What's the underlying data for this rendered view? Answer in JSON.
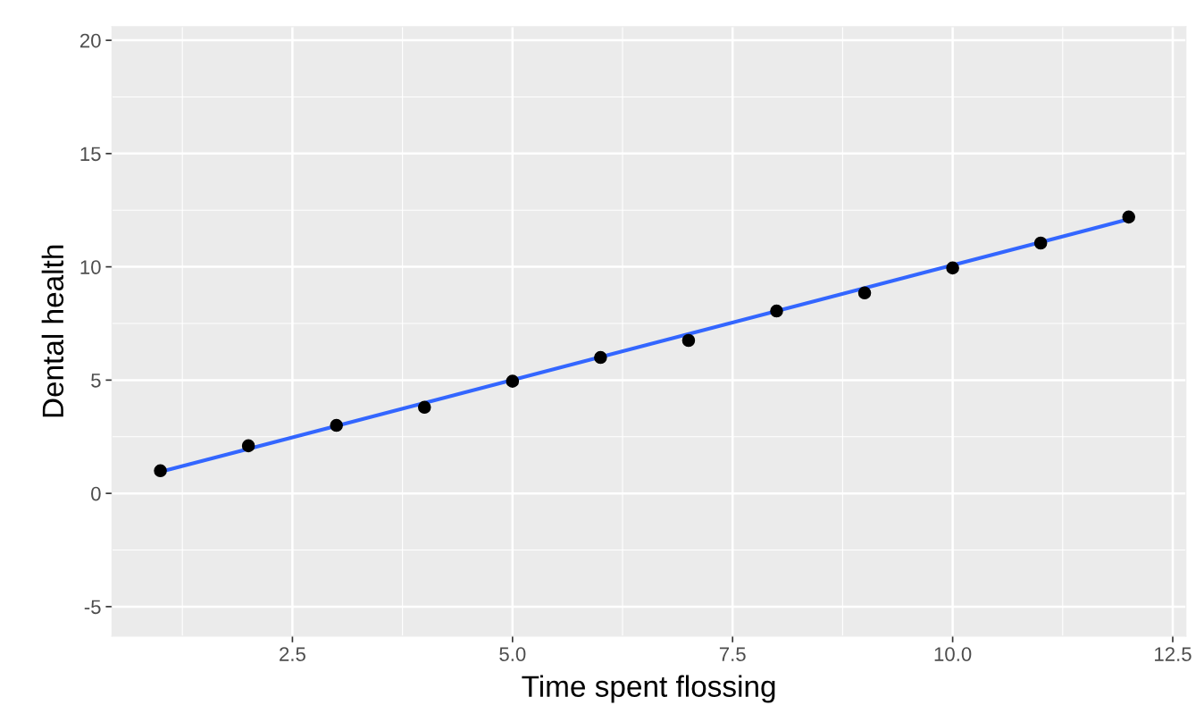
{
  "chart_data": {
    "type": "scatter",
    "xlabel": "Time spent flossing",
    "ylabel": "Dental health",
    "series": [
      {
        "color": "#000000",
        "marker": "circle",
        "x": [
          1,
          2,
          3,
          4,
          5,
          6,
          7,
          8,
          9,
          10,
          11,
          12
        ],
        "values": [
          1.0,
          2.1,
          3.0,
          3.8,
          4.95,
          6.0,
          6.75,
          8.05,
          8.85,
          9.95,
          11.05,
          12.2
        ]
      },
      {
        "type": "line",
        "color": "#3366ff",
        "line_style": "solid",
        "x": [
          1,
          12
        ],
        "values": [
          0.95,
          12.1
        ]
      }
    ],
    "xlim": [
      0.45,
      12.65
    ],
    "ylim": [
      -6.3,
      20.6
    ],
    "xticks": [
      {
        "value": 2.5,
        "label": "2.5"
      },
      {
        "value": 5.0,
        "label": "5.0"
      },
      {
        "value": 7.5,
        "label": "7.5"
      },
      {
        "value": 10.0,
        "label": "10.0"
      },
      {
        "value": 12.5,
        "label": "12.5"
      }
    ],
    "yticks": [
      -5,
      0,
      5,
      10,
      15,
      20
    ],
    "grid": true
  }
}
